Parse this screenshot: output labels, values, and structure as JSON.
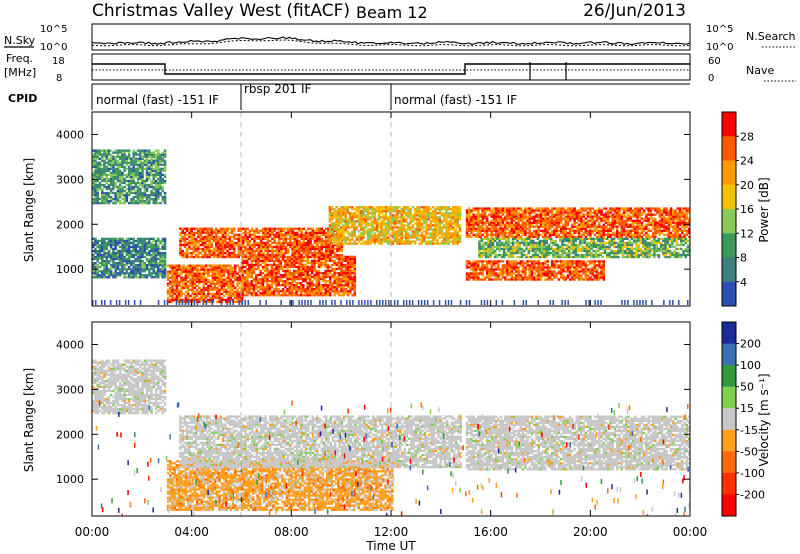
{
  "header": {
    "station": "Christmas Valley West (fitACF)",
    "beam": "Beam 12",
    "date": "26/Jun/2013"
  },
  "noise_panel": {
    "left_label": "N.Sky",
    "right_label": "N.Search",
    "left_ticks": [
      "10^5",
      "10^0"
    ],
    "right_ticks": [
      "10^5",
      "10^0"
    ]
  },
  "freq_panel": {
    "left_label_1": "Freq.",
    "left_label_2": "[MHz]",
    "right_label": "Nave",
    "left_ticks": [
      "18",
      "8"
    ],
    "right_ticks": [
      "60",
      "0"
    ]
  },
  "cpid_panel": {
    "label": "CPID",
    "segments": [
      {
        "text": "normal (fast) -151 IF",
        "start_h": 0,
        "end_h": 6
      },
      {
        "text": "rbsp 201 IF",
        "start_h": 6,
        "end_h": 12
      },
      {
        "text": "normal (fast) -151 IF",
        "start_h": 12,
        "end_h": 24
      }
    ]
  },
  "power_panel": {
    "ylabel": "Slant Range [km]",
    "yticks": [
      "4000",
      "3000",
      "2000",
      "1000"
    ],
    "colorbar_title": "Power [dB]",
    "colorbar_ticks": [
      "28",
      "24",
      "20",
      "16",
      "12",
      "8",
      "4"
    ],
    "colors": [
      "#ff0000",
      "#ff5a00",
      "#ff9a00",
      "#f2c200",
      "#88c95a",
      "#3a9a5a",
      "#3f7f7f",
      "#2b4fb0",
      "#0a1ed0"
    ]
  },
  "velocity_panel": {
    "ylabel": "Slant Range [km]",
    "yticks": [
      "4000",
      "3000",
      "2000",
      "1000"
    ],
    "colorbar_title": "Velocity [m s⁻¹]",
    "colorbar_ticks": [
      "200",
      "100",
      "50",
      "15",
      "-15",
      "-50",
      "-100",
      "-200"
    ],
    "colors": [
      "#1a2a9a",
      "#3a6fb0",
      "#2e9a3a",
      "#7fd04f",
      "#c8c8c8",
      "#ffa020",
      "#ff6a10",
      "#ff3000",
      "#ff0000"
    ]
  },
  "xaxis": {
    "label": "Time UT",
    "ticks": [
      "00:00",
      "04:00",
      "08:00",
      "12:00",
      "16:00",
      "20:00",
      "00:00"
    ]
  },
  "chart_data": {
    "type": "heatmap",
    "title": "Christmas Valley West (fitACF) Beam 12 26/Jun/2013",
    "xlabel": "Time UT",
    "ylabel": "Slant Range [km]",
    "xlim_hours": [
      0,
      24
    ],
    "ylim_km": [
      180,
      4500
    ],
    "power_bands": [
      {
        "t0": 0.0,
        "t1": 2.9,
        "r0": 2450,
        "r1": 3650,
        "level": 10
      },
      {
        "t0": 0.0,
        "t1": 2.9,
        "r0": 800,
        "r1": 1700,
        "level": 8
      },
      {
        "t0": 3.0,
        "t1": 6.0,
        "r0": 250,
        "r1": 1100,
        "level": 24
      },
      {
        "t0": 6.0,
        "t1": 10.5,
        "r0": 400,
        "r1": 1300,
        "level": 24
      },
      {
        "t0": 3.5,
        "t1": 10.0,
        "r0": 1250,
        "r1": 1900,
        "level": 24
      },
      {
        "t0": 9.5,
        "t1": 14.8,
        "r0": 1550,
        "r1": 2400,
        "level": 18
      },
      {
        "t0": 15.0,
        "t1": 24.0,
        "r0": 1700,
        "r1": 2350,
        "level": 24
      },
      {
        "t0": 15.5,
        "t1": 24.0,
        "r0": 1250,
        "r1": 1700,
        "level": 12
      },
      {
        "t0": 15.0,
        "t1": 20.5,
        "r0": 750,
        "r1": 1200,
        "level": 24
      }
    ],
    "velocity_bands": [
      {
        "t0": 0.0,
        "t1": 2.9,
        "r0": 2450,
        "r1": 3650,
        "range": "-15..15"
      },
      {
        "t0": 3.0,
        "t1": 12.0,
        "r0": 300,
        "r1": 1400,
        "range": "-50..-15"
      },
      {
        "t0": 3.5,
        "t1": 14.8,
        "r0": 1250,
        "r1": 2400,
        "range": "-15..15"
      },
      {
        "t0": 15.0,
        "t1": 24.0,
        "r0": 1200,
        "r1": 2400,
        "range": "-15..15"
      }
    ]
  }
}
